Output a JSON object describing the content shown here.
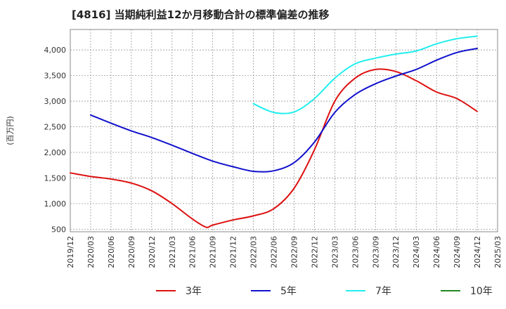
{
  "chart_data": {
    "type": "line",
    "title": "[4816]  当期純利益12か月移動合計の標準偏差の推移",
    "ylabel": "(百万円)",
    "xlabel": "",
    "ylim": [
      450,
      4400
    ],
    "yticks": [
      500,
      1000,
      1500,
      2000,
      2500,
      3000,
      3500,
      4000
    ],
    "ytick_labels": [
      "500",
      "1,000",
      "1,500",
      "2,000",
      "2,500",
      "3,000",
      "3,500",
      "4,000"
    ],
    "xticks": [
      "2019/12",
      "2020/03",
      "2020/06",
      "2020/09",
      "2020/12",
      "2021/03",
      "2021/06",
      "2021/09",
      "2021/12",
      "2022/03",
      "2022/06",
      "2022/09",
      "2022/12",
      "2023/03",
      "2023/06",
      "2023/09",
      "2023/12",
      "2024/03",
      "2024/06",
      "2024/09",
      "2024/12",
      "2025/03"
    ],
    "grid": true,
    "legend_position": "bottom",
    "series": [
      {
        "name": "3年",
        "color": "#dd1111",
        "points": [
          [
            "2019/12",
            1600
          ],
          [
            "2020/03",
            1530
          ],
          [
            "2020/06",
            1480
          ],
          [
            "2020/09",
            1400
          ],
          [
            "2020/12",
            1250
          ],
          [
            "2021/03",
            1000
          ],
          [
            "2021/06",
            700
          ],
          [
            "2021/08",
            540
          ],
          [
            "2021/09",
            580
          ],
          [
            "2021/12",
            680
          ],
          [
            "2022/03",
            760
          ],
          [
            "2022/06",
            900
          ],
          [
            "2022/09",
            1300
          ],
          [
            "2022/12",
            2050
          ],
          [
            "2023/03",
            3000
          ],
          [
            "2023/06",
            3450
          ],
          [
            "2023/09",
            3620
          ],
          [
            "2023/12",
            3580
          ],
          [
            "2024/03",
            3400
          ],
          [
            "2024/06",
            3180
          ],
          [
            "2024/09",
            3050
          ],
          [
            "2024/12",
            2800
          ]
        ]
      },
      {
        "name": "5年",
        "color": "#1111cc",
        "points": [
          [
            "2020/03",
            2730
          ],
          [
            "2020/06",
            2570
          ],
          [
            "2020/09",
            2420
          ],
          [
            "2020/12",
            2290
          ],
          [
            "2021/03",
            2140
          ],
          [
            "2021/06",
            1980
          ],
          [
            "2021/09",
            1830
          ],
          [
            "2021/12",
            1720
          ],
          [
            "2022/03",
            1630
          ],
          [
            "2022/06",
            1640
          ],
          [
            "2022/09",
            1800
          ],
          [
            "2022/12",
            2200
          ],
          [
            "2023/03",
            2780
          ],
          [
            "2023/06",
            3130
          ],
          [
            "2023/09",
            3340
          ],
          [
            "2023/12",
            3490
          ],
          [
            "2024/03",
            3620
          ],
          [
            "2024/06",
            3800
          ],
          [
            "2024/09",
            3950
          ],
          [
            "2024/12",
            4030
          ]
        ]
      },
      {
        "name": "7年",
        "color": "#22eeee",
        "points": [
          [
            "2022/03",
            2950
          ],
          [
            "2022/06",
            2780
          ],
          [
            "2022/09",
            2790
          ],
          [
            "2022/12",
            3050
          ],
          [
            "2023/03",
            3450
          ],
          [
            "2023/06",
            3730
          ],
          [
            "2023/09",
            3840
          ],
          [
            "2023/12",
            3920
          ],
          [
            "2024/03",
            3980
          ],
          [
            "2024/06",
            4120
          ],
          [
            "2024/09",
            4220
          ],
          [
            "2024/12",
            4270
          ]
        ]
      },
      {
        "name": "10年",
        "color": "#228822",
        "points": []
      }
    ]
  }
}
